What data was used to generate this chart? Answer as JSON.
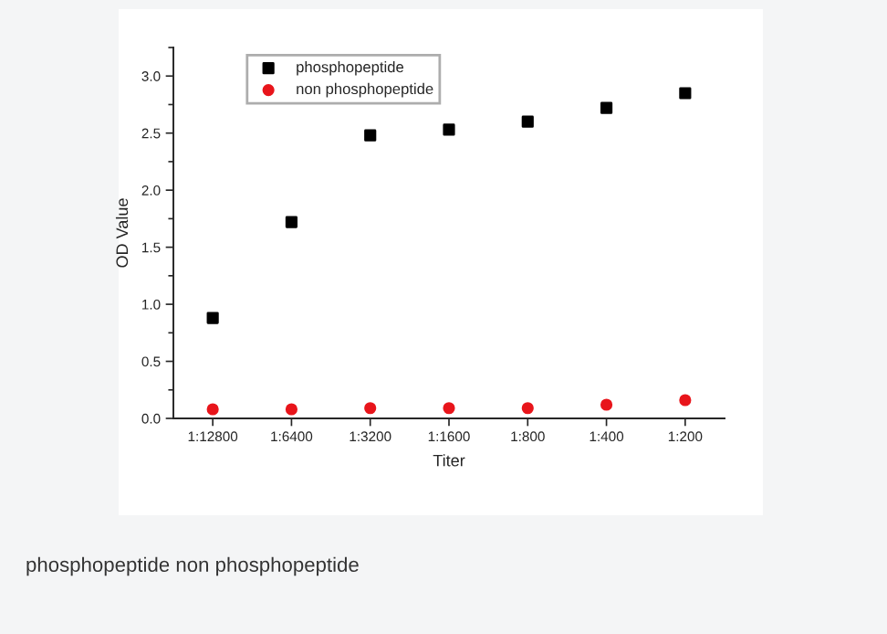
{
  "chart_data": {
    "type": "scatter",
    "xlabel": "Titer",
    "ylabel": "OD Value",
    "categories": [
      "1:12800",
      "1:6400",
      "1:3200",
      "1:1600",
      "1:800",
      "1:400",
      "1:200"
    ],
    "series": [
      {
        "name": "phosphopeptide",
        "color": "#000000",
        "marker": "square",
        "values": [
          0.88,
          1.72,
          2.48,
          2.53,
          2.6,
          2.72,
          2.85
        ]
      },
      {
        "name": "non phosphopeptide",
        "color": "#e8151b",
        "marker": "circle",
        "values": [
          0.08,
          0.08,
          0.09,
          0.09,
          0.09,
          0.12,
          0.16
        ]
      }
    ],
    "ylim": [
      0,
      3.25
    ],
    "yticks": [
      {
        "value": 0,
        "label": "0.0"
      },
      0.5,
      {
        "value": 1,
        "label": "1.0"
      },
      1.5,
      {
        "value": 2,
        "label": "2.0"
      },
      2.5,
      {
        "value": 3,
        "label": "3.0"
      }
    ],
    "legend": "top left",
    "grid": false,
    "annotations": [
      "phosphopeptide non phosphopeptide"
    ]
  }
}
